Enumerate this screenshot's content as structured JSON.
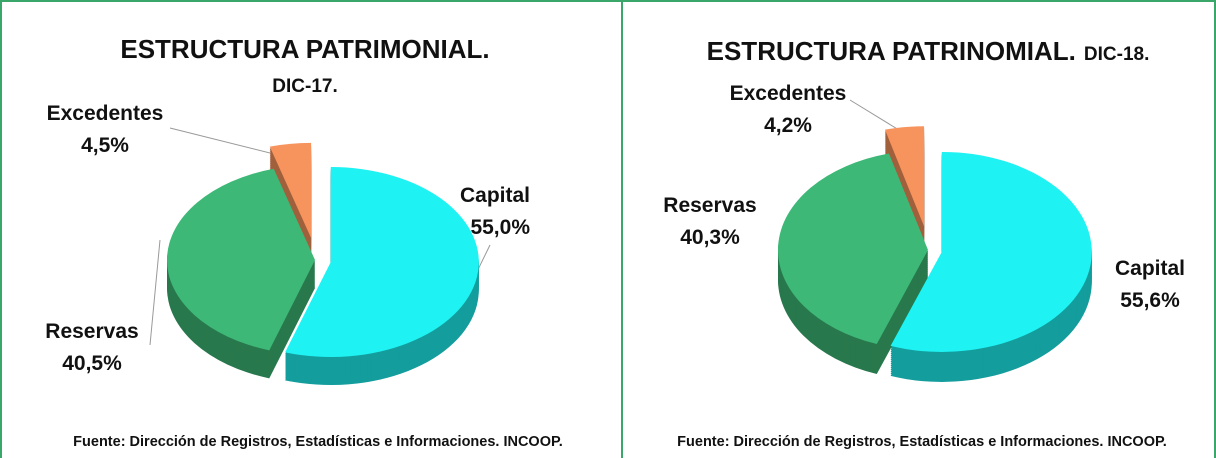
{
  "chart_data": [
    {
      "type": "pie",
      "title": "ESTRUCTURA PATRIMONIAL.",
      "subtitle": "DIC-17.",
      "categories": [
        "Capital",
        "Reservas",
        "Excedentes"
      ],
      "values": [
        55.0,
        40.5,
        4.5
      ],
      "value_labels": [
        "55,0%",
        "40,5%",
        "4,5%"
      ],
      "colors": [
        "#1ef2f2",
        "#3db877",
        "#f7935d"
      ],
      "source": "Fuente: Dirección de Registros, Estadísticas e Informaciones. INCOOP."
    },
    {
      "type": "pie",
      "title": "ESTRUCTURA PATRINOMIAL.",
      "subtitle": "DIC-18.",
      "categories": [
        "Capital",
        "Reservas",
        "Excedentes"
      ],
      "values": [
        55.6,
        40.3,
        4.2
      ],
      "value_labels": [
        "55,6%",
        "40,3%",
        "4,2%"
      ],
      "colors": [
        "#1ef2f2",
        "#3db877",
        "#f7935d"
      ],
      "source": "Fuente: Dirección de Registros, Estadísticas e Informaciones. INCOOP."
    }
  ]
}
